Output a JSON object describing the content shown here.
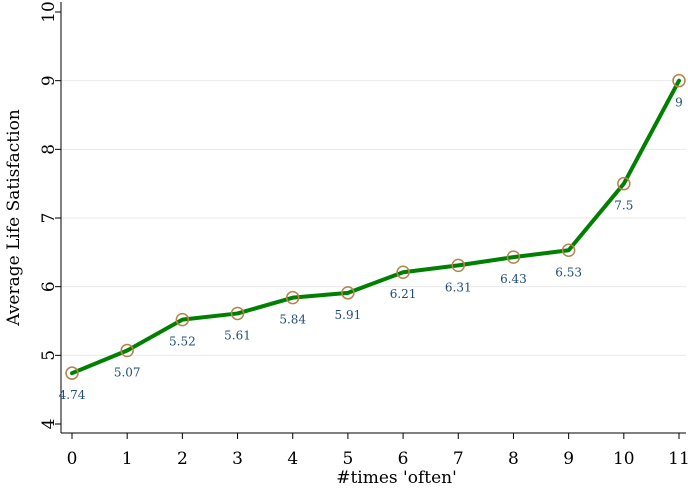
{
  "chart_data": {
    "type": "line",
    "title": "",
    "xlabel": "#times 'often'",
    "ylabel": "Average Life Satisfaction",
    "x": [
      0,
      1,
      2,
      3,
      4,
      5,
      6,
      7,
      8,
      9,
      10,
      11
    ],
    "series": [
      {
        "values": [
          4.74,
          5.07,
          5.52,
          5.61,
          5.84,
          5.91,
          6.21,
          6.31,
          6.43,
          6.53,
          7.5,
          9
        ],
        "labels": [
          "4.74",
          "5.07",
          "5.52",
          "5.61",
          "5.84",
          "5.91",
          "6.21",
          "6.31",
          "6.43",
          "6.53",
          "7.5",
          "9"
        ]
      }
    ],
    "xticks": [
      "0",
      "1",
      "2",
      "3",
      "4",
      "5",
      "6",
      "7",
      "8",
      "9",
      "10",
      "11"
    ],
    "yticks": [
      "4",
      "5",
      "6",
      "7",
      "8",
      "9",
      "10"
    ],
    "xlim": [
      0,
      11
    ],
    "ylim": [
      4,
      10
    ],
    "grid": true,
    "colors": {
      "line": "#008000",
      "marker": "#b5834c",
      "label": "#1f4e79",
      "grid": "#eaeaea",
      "axis": "#000000"
    }
  }
}
